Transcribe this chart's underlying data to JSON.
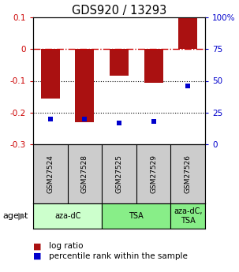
{
  "title": "GDS920 / 13293",
  "samples": [
    "GSM27524",
    "GSM27528",
    "GSM27525",
    "GSM27529",
    "GSM27526"
  ],
  "log_ratios": [
    -0.155,
    -0.23,
    -0.085,
    -0.105,
    0.1
  ],
  "percentile_ranks": [
    20,
    20,
    17,
    18,
    46
  ],
  "bar_color": "#aa1111",
  "dot_color": "#0000cc",
  "ylim_left": [
    -0.3,
    0.1
  ],
  "ylim_right": [
    0,
    100
  ],
  "yticks_left": [
    0.1,
    0.0,
    -0.1,
    -0.2,
    -0.3
  ],
  "yticks_right": [
    100,
    75,
    50,
    25,
    0
  ],
  "legend_log_ratio": "log ratio",
  "legend_percentile": "percentile rank within the sample",
  "bg_color": "#ffffff",
  "plot_bg_color": "#ffffff",
  "hline_color": "#cc0000",
  "dotted_color": "#000000",
  "sample_bg_color": "#cccccc",
  "agent_color_1": "#ccffcc",
  "agent_color_2": "#88ee88"
}
